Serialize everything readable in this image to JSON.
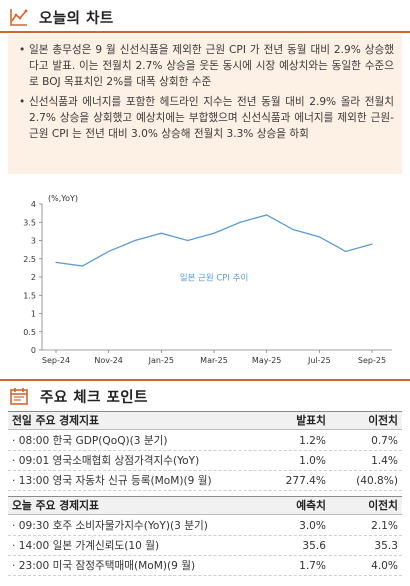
{
  "today_chart": {
    "title": "오늘의 차트",
    "icon": "line-chart-icon",
    "bullets": [
      "일본 총무성은 9 월 신선식품을 제외한 근원 CPI 가 전년 동월 대비 2.9% 상승했다고 발표. 이는 전월치 2.7% 상승을 웃돈 동시에 시장 예상치와는 동일한 수준으로 BOJ 목표치인 2%를 대폭 상회한 수준",
      "신선식품과 에너지를 포함한 헤드라인 지수는 전년 동월 대비 2.9% 올라 전월치 2.7% 상승을 상회했고 예상치에는 부합했으며 신선식품과 에너지를 제외한 근원-근원 CPI 는 전년 대비 3.0% 상승해 전월치 3.3% 상승을 하회"
    ]
  },
  "chart_data": {
    "type": "line",
    "ylabel": "(%,YoY)",
    "ylim": [
      0,
      4
    ],
    "yticks": [
      "0",
      "0.5",
      "1",
      "1.5",
      "2",
      "2.5",
      "3",
      "3.5",
      "4"
    ],
    "xtick_labels": [
      "Sep-24",
      "Nov-24",
      "Jan-25",
      "Mar-25",
      "May-25",
      "Jul-25",
      "Sep-25"
    ],
    "x": [
      "Sep-24",
      "Oct-24",
      "Nov-24",
      "Dec-24",
      "Jan-25",
      "Feb-25",
      "Mar-25",
      "Apr-25",
      "May-25",
      "Jun-25",
      "Jul-25",
      "Aug-25",
      "Sep-25"
    ],
    "series": [
      {
        "name": "일본 근원 CPI 추이",
        "color": "#5b9bd5",
        "values": [
          2.4,
          2.3,
          2.7,
          3.0,
          3.2,
          3.0,
          3.2,
          3.5,
          3.7,
          3.3,
          3.1,
          2.7,
          2.9
        ]
      }
    ],
    "grid": false,
    "legend": "inline"
  },
  "checkpoints": {
    "title": "주요 체크 포인트",
    "icon": "calendar-icon",
    "prev_table": {
      "headers": [
        "전일 주요 경제지표",
        "발표치",
        "이전치"
      ],
      "rows": [
        {
          "name": "· 08:00 한국 GDP(QoQ)(3 분기)",
          "a": "1.2%",
          "b": "0.7%"
        },
        {
          "name": "· 09:01 영국소매협회 상점가격지수(YoY)",
          "a": "1.0%",
          "b": "1.4%"
        },
        {
          "name": "· 13:00 영국 자동차 신규 등록(MoM)(9 월)",
          "a": "277.4%",
          "b": "(40.8%)"
        }
      ]
    },
    "today_table": {
      "headers": [
        "오늘 주요 경제지표",
        "예측치",
        "이전치"
      ],
      "rows": [
        {
          "name": "· 09:30 호주 소비자물가지수(YoY)(3 분기)",
          "a": "3.0%",
          "b": "2.1%"
        },
        {
          "name": "· 14:00 일본 가계신뢰도(10 월)",
          "a": "35.6",
          "b": "35.3"
        },
        {
          "name": "· 23:00 미국 잠정주택매매(MoM)(9 월)",
          "a": "1.7%",
          "b": "4.0%"
        }
      ]
    }
  },
  "colors": {
    "accent": "#d5662a",
    "box_bg": "#fdf0e4",
    "line": "#5b9bd5"
  }
}
